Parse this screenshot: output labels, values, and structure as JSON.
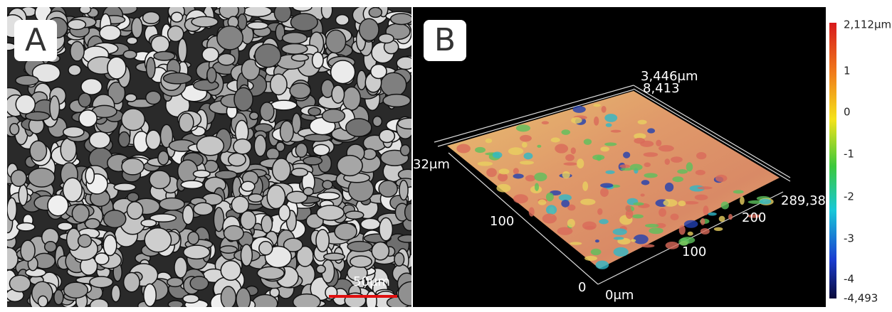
{
  "panels": [
    {
      "label": "A",
      "scale_bar": "50μm"
    },
    {
      "label": "B",
      "axes": {
        "z_top": "3,446μm",
        "y_end": "8,413",
        "y_label": "32μm",
        "y_tick": "100",
        "x_end": "289,38",
        "x_tick_2": "200",
        "x_tick_1": "100",
        "origin": "0",
        "x_label": "0μm"
      },
      "colorbar": {
        "ticks": [
          "2,112μm",
          "1",
          "0",
          "-1",
          "-2",
          "-3",
          "-4",
          "-4,493"
        ]
      }
    }
  ]
}
